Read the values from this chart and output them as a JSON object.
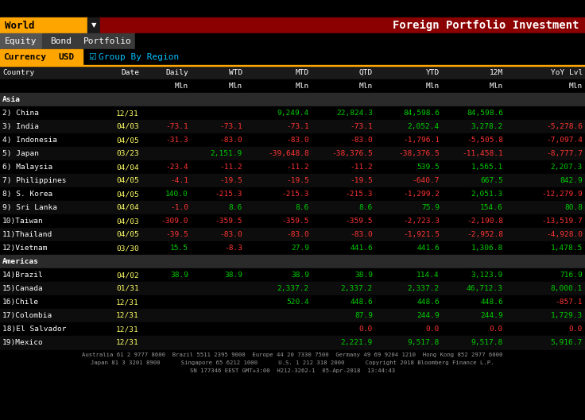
{
  "title": "Foreign Portfolio Investment",
  "world_label": "World",
  "tabs": [
    "Equity",
    "Bond",
    "Portfolio"
  ],
  "currency_label": "Currency",
  "currency_value": "USD",
  "group_by": "Group By Region",
  "columns": [
    "Country",
    "Date",
    "Daily",
    "WTD",
    "MTD",
    "QTD",
    "YTD",
    "12M",
    "YoY Lvl"
  ],
  "units_row": [
    "",
    "",
    "Mln",
    "Mln",
    "Mln",
    "Mln",
    "Mln",
    "Mln",
    "Mln"
  ],
  "region_asia": "Asia",
  "region_americas": "Americas",
  "rows_asia": [
    {
      "num": "2) ",
      "country": "China",
      "date": "12/31",
      "daily": "",
      "wtd": "",
      "mtd": "9,249.4",
      "qtd": "22,824.3",
      "ytd": "84,598.6",
      "m12": "84,598.6",
      "yoy": ""
    },
    {
      "num": "3) ",
      "country": "India",
      "date": "04/03",
      "daily": "-73.1",
      "wtd": "-73.1",
      "mtd": "-73.1",
      "qtd": "-73.1",
      "ytd": "2,052.4",
      "m12": "3,278.2",
      "yoy": "-5,278.6"
    },
    {
      "num": "4) ",
      "country": "Indonesia",
      "date": "04/05",
      "daily": "-31.3",
      "wtd": "-83.0",
      "mtd": "-83.0",
      "qtd": "-83.0",
      "ytd": "-1,796.1",
      "m12": "-5,505.8",
      "yoy": "-7,097.4"
    },
    {
      "num": "5) ",
      "country": "Japan",
      "date": "03/23",
      "daily": "",
      "wtd": "2,151.9",
      "mtd": "-39,648.8",
      "qtd": "-38,376.5",
      "ytd": "-38,376.5",
      "m12": "-11,458.1",
      "yoy": "-8,777.7"
    },
    {
      "num": "6) ",
      "country": "Malaysia",
      "date": "04/04",
      "daily": "-23.4",
      "wtd": "-11.2",
      "mtd": "-11.2",
      "qtd": "-11.2",
      "ytd": "539.5",
      "m12": "1,565.1",
      "yoy": "2,207.3"
    },
    {
      "num": "7) ",
      "country": "Philippines",
      "date": "04/05",
      "daily": "-4.1",
      "wtd": "-19.5",
      "mtd": "-19.5",
      "qtd": "-19.5",
      "ytd": "-640.7",
      "m12": "667.5",
      "yoy": "842.9"
    },
    {
      "num": "8) ",
      "country": "S. Korea",
      "date": "04/05",
      "daily": "140.0",
      "wtd": "-215.3",
      "mtd": "-215.3",
      "qtd": "-215.3",
      "ytd": "-1,299.2",
      "m12": "2,051.3",
      "yoy": "-12,279.9"
    },
    {
      "num": "9) ",
      "country": "Sri Lanka",
      "date": "04/04",
      "daily": "-1.0",
      "wtd": "8.6",
      "mtd": "8.6",
      "qtd": "8.6",
      "ytd": "75.9",
      "m12": "154.6",
      "yoy": "80.8"
    },
    {
      "num": "10)",
      "country": "Taiwan",
      "date": "04/03",
      "daily": "-309.0",
      "wtd": "-359.5",
      "mtd": "-359.5",
      "qtd": "-359.5",
      "ytd": "-2,723.3",
      "m12": "-2,190.8",
      "yoy": "-13,519.7"
    },
    {
      "num": "11)",
      "country": "Thailand",
      "date": "04/05",
      "daily": "-39.5",
      "wtd": "-83.0",
      "mtd": "-83.0",
      "qtd": "-83.0",
      "ytd": "-1,921.5",
      "m12": "-2,952.8",
      "yoy": "-4,928.0"
    },
    {
      "num": "12)",
      "country": "Vietnam",
      "date": "03/30",
      "daily": "15.5",
      "wtd": "-8.3",
      "mtd": "27.9",
      "qtd": "441.6",
      "ytd": "441.6",
      "m12": "1,306.8",
      "yoy": "1,478.5"
    }
  ],
  "rows_americas": [
    {
      "num": "14)",
      "country": "Brazil",
      "date": "04/02",
      "daily": "38.9",
      "wtd": "38.9",
      "mtd": "38.9",
      "qtd": "38.9",
      "ytd": "114.4",
      "m12": "3,123.9",
      "yoy": "716.9"
    },
    {
      "num": "15)",
      "country": "Canada",
      "date": "01/31",
      "daily": "",
      "wtd": "",
      "mtd": "2,337.2",
      "qtd": "2,337.2",
      "ytd": "2,337.2",
      "m12": "46,712.3",
      "yoy": "8,000.1"
    },
    {
      "num": "16)",
      "country": "Chile",
      "date": "12/31",
      "daily": "",
      "wtd": "",
      "mtd": "520.4",
      "qtd": "448.6",
      "ytd": "448.6",
      "m12": "448.6",
      "yoy": "-857.1"
    },
    {
      "num": "17)",
      "country": "Colombia",
      "date": "12/31",
      "daily": "",
      "wtd": "",
      "mtd": "",
      "qtd": "87.9",
      "ytd": "244.9",
      "m12": "244.9",
      "yoy": "1,729.3"
    },
    {
      "num": "18)",
      "country": "El Salvador",
      "date": "12/31",
      "daily": "",
      "wtd": "",
      "mtd": "",
      "qtd": "0.0",
      "ytd": "0.0",
      "m12": "0.0",
      "yoy": "0.0"
    },
    {
      "num": "19)",
      "country": "Mexico",
      "date": "12/31",
      "daily": "",
      "wtd": "",
      "mtd": "",
      "qtd": "2,221.9",
      "ytd": "9,517.8",
      "m12": "9,517.8",
      "yoy": "5,916.7"
    }
  ],
  "footer_lines": [
    "Australia 61 2 9777 8600  Brazil 5511 2395 9000  Europe 44 20 7330 7500  Germany 49 69 9204 1210  Hong Kong 852 2977 6000",
    "Japan 81 3 3201 8900      Singapore 65 6212 1000      U.S. 1 212 318 2000      Copyright 2018 Bloomberg Finance L.P.",
    "SN 177346 EEST GMT+3:00  H212-3262-1  05-Apr-2018  13:44:43"
  ],
  "bg_color": "#000000",
  "header_bar_color": "#8B0000",
  "world_btn_color": "#FFA500",
  "tab_active_color": "#555555",
  "tab_inactive_color": "#3a3a3a",
  "currency_label_color": "#FFA500",
  "usd_btn_color": "#FFA500",
  "group_by_color": "#00BFFF",
  "col_header_bg": "#1a1a1a",
  "region_header_bg": "#2a2a2a",
  "text_green": "#00CC00",
  "text_red": "#FF3333",
  "text_white": "#FFFFFF",
  "text_yellow": "#FFFF66",
  "footer_color": "#999999",
  "font_size": 6.8
}
